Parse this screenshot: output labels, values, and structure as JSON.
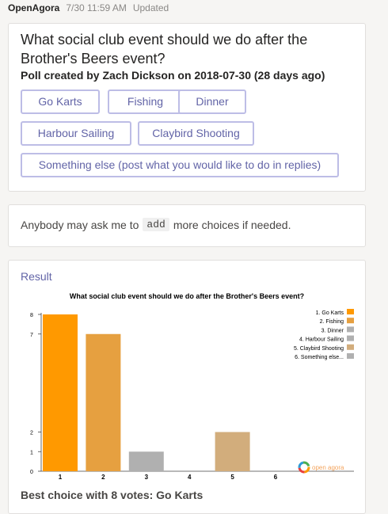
{
  "message": {
    "sender": "OpenAgora",
    "time": "7/30 11:59 AM",
    "status": "Updated"
  },
  "poll": {
    "title": "What social club event should we do after the Brother's Beers event?",
    "subtitle": "Poll created by Zach Dickson on 2018-07-30 (28 days ago)",
    "choices": [
      {
        "label": "Go Karts"
      },
      {
        "label": "Fishing"
      },
      {
        "label": "Dinner"
      },
      {
        "label": "Harbour Sailing"
      },
      {
        "label": "Claybird Shooting"
      },
      {
        "label": "Something else (post what you would like to do in replies)"
      }
    ]
  },
  "info": {
    "text_before": "Anybody may ask me to",
    "code": "add",
    "text_after": "more choices if needed."
  },
  "result": {
    "label": "Result",
    "best_choice": "Best choice with 8 votes: Go Karts",
    "watermark": "open agora"
  },
  "chart_data": {
    "type": "bar",
    "title": "What social club event should we do after the Brother's Beers event?",
    "categories": [
      "1",
      "2",
      "3",
      "4",
      "5",
      "6"
    ],
    "values": [
      8,
      7,
      1,
      0,
      2,
      0
    ],
    "colors": [
      "#ff9900",
      "#e6a040",
      "#b0b0b0",
      "#b0b0b0",
      "#d2ad7c",
      "#b0b0b0"
    ],
    "legend": [
      "1. Go Karts",
      "2. Fishing",
      "3. Dinner",
      "4. Harbour Sailing",
      "5. Claybird Shooting",
      "6. Something else..."
    ],
    "legend_position": "top-right",
    "y_ticks": [
      0,
      1,
      2,
      7,
      8
    ],
    "ylim": [
      0,
      8
    ],
    "grid": false
  }
}
